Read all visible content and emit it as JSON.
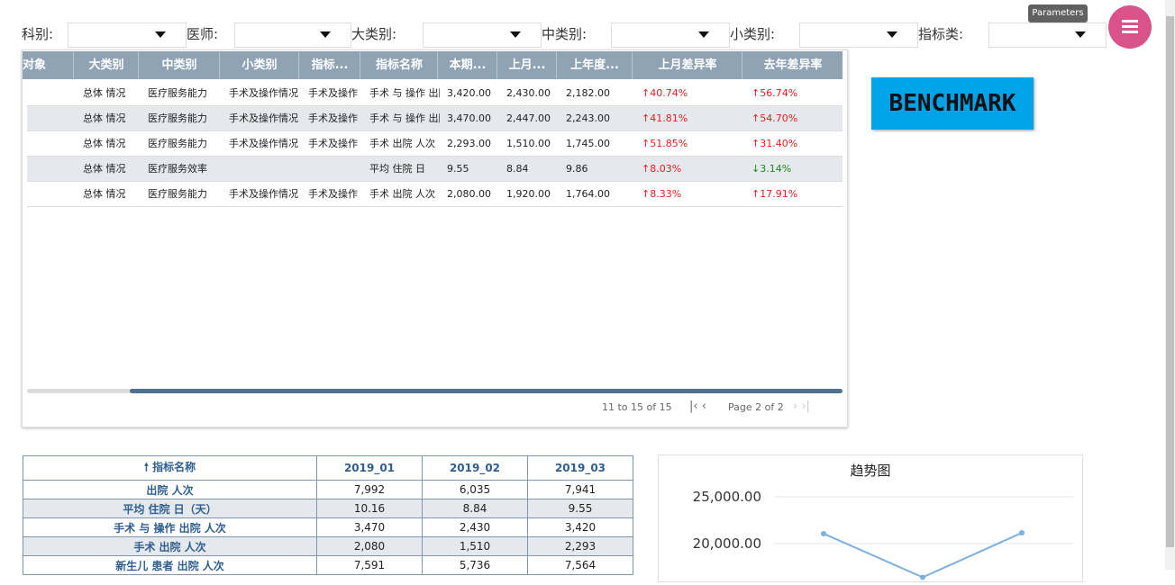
{
  "filters": [
    "科别:",
    "医师:",
    "大类别:",
    "中类别:",
    "小类别:",
    "指标类:"
  ],
  "parameters_tooltip": "Parameters",
  "grid": {
    "headers": [
      "对象",
      "大类别",
      "中类别",
      "小类别",
      "指标...",
      "指标名称",
      "本期...",
      "上月...",
      "上年度...",
      "上月差异率",
      "去年差异率"
    ],
    "rows": [
      [
        "",
        "总体 情况",
        "医疗服务能力",
        "手术及操作情况",
        "手术及操作",
        "手术 与 操作 出院人次",
        "3,420.00",
        "2,430.00",
        "2,182.00",
        "↑40.74%",
        "↑56.74%"
      ],
      [
        "",
        "总体 情况",
        "医疗服务能力",
        "手术及操作情况",
        "手术及操作",
        "手术 与 操作 出院人次",
        "3,470.00",
        "2,447.00",
        "2,243.00",
        "↑41.81%",
        "↑54.70%"
      ],
      [
        "",
        "总体 情况",
        "医疗服务能力",
        "手术及操作情况",
        "手术及操作",
        "手术 出院 人次",
        "2,293.00",
        "1,510.00",
        "1,745.00",
        "↑51.85%",
        "↑31.40%"
      ],
      [
        "",
        "总体 情况",
        "医疗服务效率",
        "",
        "",
        "平均 住院 日",
        "9.55",
        "8.84",
        "9.86",
        "↑8.03%",
        "↓3.14%"
      ],
      [
        "",
        "总体 情况",
        "医疗服务能力",
        "手术及操作情况",
        "手术及操作",
        "手术 出院 人次",
        "2,080.00",
        "1,920.00",
        "1,764.00",
        "↑8.33%",
        "↑17.91%"
      ]
    ],
    "row_count": "11 to 15 of 15",
    "page": "Page 2 of 2"
  },
  "benchmark": "BENCHMARK",
  "pivot": {
    "headers": [
      "指标名称",
      "2019_01",
      "2019_02",
      "2019_03"
    ],
    "rows": [
      [
        "出院 人次",
        "7,992",
        "6,035",
        "7,941"
      ],
      [
        "平均 住院 日（天）",
        "10.16",
        "8.84",
        "9.55"
      ],
      [
        "手术 与 操作 出院 人次",
        "3,470",
        "2,430",
        "3,420"
      ],
      [
        "手术 出院 人次",
        "2,080",
        "1,510",
        "2,293"
      ],
      [
        "新生儿 患者 出院 人次",
        "7,591",
        "5,736",
        "7,564"
      ]
    ]
  },
  "trend_chart": {
    "type": "line",
    "title": "趋势图",
    "color": "#7cb1e0",
    "values": [
      21060,
      16400,
      21150
    ],
    "ylim": [
      12500,
      26000
    ],
    "yticks": [
      {
        "value": 25000,
        "label": "25,000.00"
      },
      {
        "value": 20000,
        "label": "20,000.00"
      }
    ]
  }
}
